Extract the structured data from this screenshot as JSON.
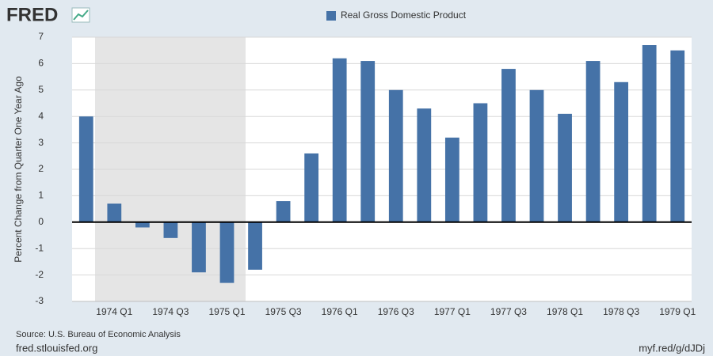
{
  "logo": "FRED",
  "source": "Source: U.S. Bureau of Economic Analysis",
  "site": "fred.stlouisfed.org",
  "short_url": "myf.red/g/dJDj",
  "chart_data": {
    "type": "bar",
    "y_label": "Percent Change from Quarter One Year Ago",
    "categories": [
      null,
      "1974 Q1",
      null,
      "1974 Q3",
      null,
      "1975 Q1",
      null,
      "1975 Q3",
      null,
      "1976 Q1",
      null,
      "1976 Q3",
      null,
      "1977 Q1",
      null,
      "1977 Q3",
      null,
      "1978 Q1",
      null,
      "1978 Q3",
      null,
      "1979 Q1"
    ],
    "series": [
      {
        "name": "Real Gross Domestic Product",
        "color": "#4572a7",
        "values": [
          4.0,
          0.7,
          -0.2,
          -0.6,
          -1.9,
          -2.3,
          -1.8,
          0.8,
          2.6,
          6.2,
          6.1,
          5.0,
          4.3,
          3.2,
          4.5,
          5.8,
          5.0,
          4.1,
          6.1,
          5.3,
          6.7,
          6.5
        ]
      }
    ],
    "ylim": [
      -3,
      7
    ],
    "yticks": [
      -3,
      -2,
      -1,
      0,
      1,
      2,
      3,
      4,
      5,
      6,
      7
    ],
    "grid": true
  }
}
